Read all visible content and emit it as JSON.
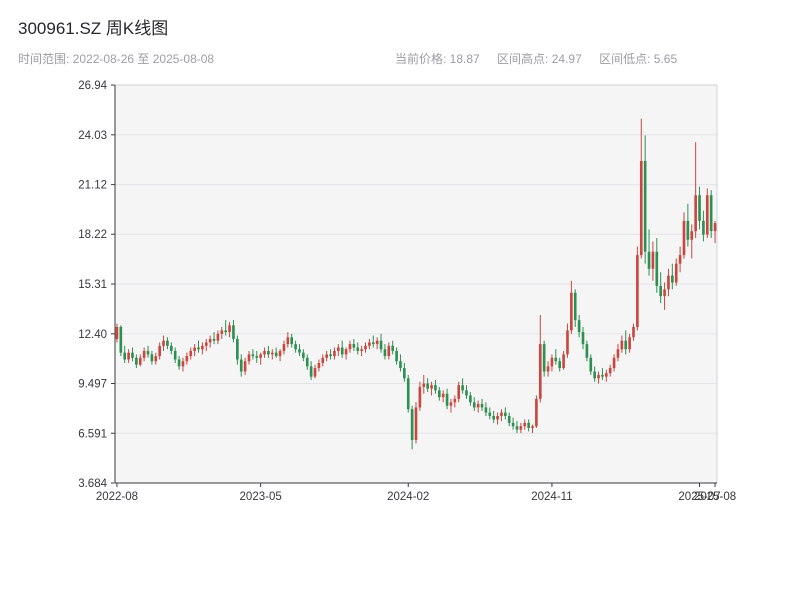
{
  "header": {
    "title": "300961.SZ 周K线图"
  },
  "subheader": {
    "time_range": "时间范围: 2022-08-26 至 2025-08-08",
    "current_price": "当前价格: 18.87",
    "range_high": "区间高点: 24.97",
    "range_low": "区间低点: 5.65"
  },
  "chart_data": {
    "type": "candlestick",
    "title": "300961.SZ 周K线图",
    "xlabel": "",
    "ylabel": "",
    "ylim": [
      3.684,
      26.94
    ],
    "grid": true,
    "legend": "none",
    "colors": {
      "up": "#c9473f",
      "down": "#2e8f52",
      "plot_bg": "#f5f5f6",
      "grid": "#e4e4e8",
      "frame": "#d2d2d7",
      "axis": "#3a3a3e",
      "text": "#37383c"
    },
    "y_ticks": [
      {
        "label": "26.94",
        "value": 26.94
      },
      {
        "label": "24.03",
        "value": 24.03
      },
      {
        "label": "21.12",
        "value": 21.12
      },
      {
        "label": "18.22",
        "value": 18.22
      },
      {
        "label": "15.31",
        "value": 15.31
      },
      {
        "label": "12.40",
        "value": 12.4
      },
      {
        "label": "9.497",
        "value": 9.497
      },
      {
        "label": "6.591",
        "value": 6.591
      },
      {
        "label": "3.684",
        "value": 3.684
      }
    ],
    "x_ticks": [
      {
        "label": "2022-08",
        "week": 0
      },
      {
        "label": "2023-05",
        "week": 37
      },
      {
        "label": "2024-02",
        "week": 75
      },
      {
        "label": "2024-11",
        "week": 112
      },
      {
        "label": "2025-07",
        "week": 150
      },
      {
        "label": "2025-08",
        "week": 154
      }
    ],
    "ohlc_order": [
      "open",
      "high",
      "low",
      "close"
    ],
    "candles": [
      [
        12.1,
        13.0,
        11.9,
        12.8
      ],
      [
        12.8,
        12.9,
        11.1,
        11.3
      ],
      [
        11.3,
        11.7,
        10.7,
        10.9
      ],
      [
        10.9,
        11.5,
        10.7,
        11.3
      ],
      [
        11.3,
        11.6,
        10.8,
        11.0
      ],
      [
        11.0,
        11.2,
        10.4,
        10.6
      ],
      [
        10.6,
        11.2,
        10.5,
        11.0
      ],
      [
        11.0,
        11.6,
        10.8,
        11.4
      ],
      [
        11.4,
        11.7,
        11.0,
        11.2
      ],
      [
        11.2,
        11.4,
        10.6,
        10.8
      ],
      [
        10.8,
        11.3,
        10.6,
        11.1
      ],
      [
        11.1,
        11.9,
        10.9,
        11.7
      ],
      [
        11.7,
        12.3,
        11.4,
        12.0
      ],
      [
        12.0,
        12.2,
        11.5,
        11.7
      ],
      [
        11.7,
        11.9,
        11.2,
        11.4
      ],
      [
        11.4,
        11.6,
        10.7,
        10.9
      ],
      [
        10.9,
        11.1,
        10.3,
        10.5
      ],
      [
        10.5,
        11.0,
        10.2,
        10.8
      ],
      [
        10.8,
        11.3,
        10.6,
        11.1
      ],
      [
        11.1,
        11.6,
        10.9,
        11.4
      ],
      [
        11.4,
        11.8,
        11.1,
        11.6
      ],
      [
        11.6,
        12.0,
        11.3,
        11.5
      ],
      [
        11.5,
        11.9,
        11.2,
        11.7
      ],
      [
        11.7,
        12.1,
        11.4,
        11.9
      ],
      [
        11.9,
        12.3,
        11.6,
        12.1
      ],
      [
        12.1,
        12.5,
        11.8,
        12.0
      ],
      [
        12.0,
        12.6,
        11.8,
        12.4
      ],
      [
        12.4,
        12.8,
        12.1,
        12.6
      ],
      [
        12.6,
        13.2,
        12.3,
        12.5
      ],
      [
        12.5,
        13.1,
        12.2,
        12.9
      ],
      [
        12.9,
        13.2,
        11.9,
        12.1
      ],
      [
        12.1,
        12.3,
        10.6,
        10.9
      ],
      [
        10.9,
        11.2,
        9.9,
        10.2
      ],
      [
        10.2,
        11.0,
        10.0,
        10.8
      ],
      [
        10.8,
        11.4,
        10.6,
        11.2
      ],
      [
        11.2,
        11.5,
        10.9,
        11.1
      ],
      [
        11.1,
        11.4,
        10.7,
        11.0
      ],
      [
        11.0,
        11.3,
        10.6,
        11.2
      ],
      [
        11.2,
        11.6,
        11.0,
        11.4
      ],
      [
        11.4,
        11.7,
        11.0,
        11.2
      ],
      [
        11.2,
        11.5,
        10.9,
        11.3
      ],
      [
        11.3,
        11.6,
        11.0,
        11.1
      ],
      [
        11.1,
        11.5,
        10.8,
        11.4
      ],
      [
        11.4,
        12.0,
        11.2,
        11.8
      ],
      [
        11.8,
        12.5,
        11.6,
        12.2
      ],
      [
        12.2,
        12.4,
        11.6,
        11.8
      ],
      [
        11.8,
        12.0,
        11.3,
        11.5
      ],
      [
        11.5,
        11.8,
        11.1,
        11.3
      ],
      [
        11.3,
        11.5,
        10.8,
        11.0
      ],
      [
        11.0,
        11.2,
        10.3,
        10.5
      ],
      [
        10.5,
        10.8,
        9.7,
        9.9
      ],
      [
        9.9,
        10.6,
        9.8,
        10.4
      ],
      [
        10.4,
        10.9,
        10.2,
        10.7
      ],
      [
        10.7,
        11.2,
        10.5,
        11.0
      ],
      [
        11.0,
        11.4,
        10.8,
        11.2
      ],
      [
        11.2,
        11.5,
        10.9,
        11.1
      ],
      [
        11.1,
        11.6,
        10.9,
        11.4
      ],
      [
        11.4,
        11.8,
        11.1,
        11.6
      ],
      [
        11.6,
        12.0,
        11.0,
        11.2
      ],
      [
        11.2,
        11.6,
        10.9,
        11.5
      ],
      [
        11.5,
        12.0,
        11.3,
        11.8
      ],
      [
        11.8,
        12.1,
        11.4,
        11.6
      ],
      [
        11.6,
        11.9,
        11.2,
        11.4
      ],
      [
        11.4,
        11.7,
        11.1,
        11.5
      ],
      [
        11.5,
        11.9,
        11.3,
        11.7
      ],
      [
        11.7,
        12.1,
        11.5,
        11.9
      ],
      [
        11.9,
        12.3,
        11.6,
        11.8
      ],
      [
        11.8,
        12.2,
        11.5,
        12.0
      ],
      [
        12.0,
        12.4,
        11.3,
        11.5
      ],
      [
        11.5,
        11.8,
        10.9,
        11.1
      ],
      [
        11.1,
        11.9,
        10.9,
        11.7
      ],
      [
        11.7,
        12.0,
        11.2,
        11.4
      ],
      [
        11.4,
        11.6,
        10.6,
        10.8
      ],
      [
        10.8,
        11.2,
        10.2,
        10.4
      ],
      [
        10.4,
        10.7,
        9.6,
        9.8
      ],
      [
        9.8,
        10.0,
        7.8,
        8.0
      ],
      [
        8.0,
        8.2,
        5.65,
        6.2
      ],
      [
        6.2,
        8.4,
        6.0,
        8.1
      ],
      [
        8.1,
        9.6,
        7.9,
        9.3
      ],
      [
        9.3,
        10.0,
        8.9,
        9.5
      ],
      [
        9.5,
        9.8,
        9.0,
        9.2
      ],
      [
        9.2,
        9.6,
        8.8,
        9.4
      ],
      [
        9.4,
        9.7,
        8.9,
        9.1
      ],
      [
        9.1,
        9.3,
        8.5,
        8.7
      ],
      [
        8.7,
        9.1,
        8.4,
        8.9
      ],
      [
        8.9,
        9.2,
        8.0,
        8.2
      ],
      [
        8.2,
        8.6,
        7.8,
        8.4
      ],
      [
        8.4,
        8.8,
        8.1,
        8.6
      ],
      [
        8.6,
        9.6,
        8.4,
        9.4
      ],
      [
        9.4,
        9.8,
        8.9,
        9.1
      ],
      [
        9.1,
        9.4,
        8.6,
        8.8
      ],
      [
        8.8,
        9.0,
        8.2,
        8.4
      ],
      [
        8.4,
        8.7,
        7.9,
        8.1
      ],
      [
        8.1,
        8.5,
        7.8,
        8.3
      ],
      [
        8.3,
        8.6,
        7.9,
        8.1
      ],
      [
        8.1,
        8.4,
        7.6,
        7.8
      ],
      [
        7.8,
        8.1,
        7.4,
        7.6
      ],
      [
        7.6,
        7.9,
        7.2,
        7.4
      ],
      [
        7.4,
        7.8,
        7.1,
        7.6
      ],
      [
        7.6,
        8.0,
        7.3,
        7.8
      ],
      [
        7.8,
        8.1,
        7.4,
        7.6
      ],
      [
        7.6,
        7.8,
        7.0,
        7.2
      ],
      [
        7.2,
        7.5,
        6.8,
        7.0
      ],
      [
        7.0,
        7.3,
        6.6,
        6.8
      ],
      [
        6.8,
        7.2,
        6.6,
        7.0
      ],
      [
        7.0,
        7.4,
        6.8,
        7.2
      ],
      [
        7.2,
        7.4,
        6.7,
        6.9
      ],
      [
        6.9,
        7.1,
        6.6,
        7.0
      ],
      [
        7.0,
        8.8,
        6.9,
        8.6
      ],
      [
        8.6,
        13.5,
        8.4,
        11.8
      ],
      [
        11.8,
        12.0,
        9.9,
        10.2
      ],
      [
        10.2,
        10.8,
        9.9,
        10.5
      ],
      [
        10.5,
        11.2,
        10.2,
        11.0
      ],
      [
        11.0,
        11.5,
        10.6,
        10.8
      ],
      [
        10.8,
        11.0,
        10.2,
        10.4
      ],
      [
        10.4,
        11.4,
        10.3,
        11.2
      ],
      [
        11.2,
        13.0,
        11.0,
        12.6
      ],
      [
        12.6,
        15.5,
        12.4,
        14.8
      ],
      [
        14.8,
        15.0,
        12.8,
        13.2
      ],
      [
        13.2,
        13.5,
        12.2,
        12.5
      ],
      [
        12.5,
        12.8,
        11.5,
        11.8
      ],
      [
        11.8,
        12.0,
        10.8,
        11.0
      ],
      [
        11.0,
        11.2,
        10.0,
        10.2
      ],
      [
        10.2,
        10.5,
        9.6,
        9.8
      ],
      [
        9.8,
        10.2,
        9.5,
        10.0
      ],
      [
        10.0,
        10.4,
        9.7,
        9.9
      ],
      [
        9.9,
        10.3,
        9.6,
        10.1
      ],
      [
        10.1,
        10.6,
        9.9,
        10.4
      ],
      [
        10.4,
        11.2,
        10.2,
        11.0
      ],
      [
        11.0,
        11.8,
        10.8,
        11.5
      ],
      [
        11.5,
        12.3,
        11.3,
        12.0
      ],
      [
        12.0,
        12.6,
        11.2,
        11.5
      ],
      [
        11.5,
        12.4,
        11.3,
        12.2
      ],
      [
        12.2,
        13.0,
        12.0,
        12.8
      ],
      [
        12.8,
        17.5,
        12.6,
        17.0
      ],
      [
        17.0,
        24.97,
        16.8,
        22.5
      ],
      [
        22.5,
        24.0,
        16.5,
        17.2
      ],
      [
        17.2,
        18.5,
        15.8,
        16.2
      ],
      [
        16.2,
        17.8,
        15.5,
        17.2
      ],
      [
        17.2,
        18.0,
        14.8,
        15.2
      ],
      [
        15.2,
        16.0,
        14.2,
        14.6
      ],
      [
        14.6,
        15.4,
        13.8,
        15.0
      ],
      [
        15.0,
        16.2,
        14.6,
        15.8
      ],
      [
        15.8,
        16.5,
        15.0,
        15.4
      ],
      [
        15.4,
        16.8,
        15.2,
        16.5
      ],
      [
        16.5,
        17.5,
        16.0,
        17.0
      ],
      [
        17.0,
        19.5,
        16.8,
        19.0
      ],
      [
        19.0,
        20.0,
        17.5,
        17.9
      ],
      [
        17.9,
        18.8,
        16.8,
        18.4
      ],
      [
        18.4,
        23.6,
        18.0,
        20.5
      ],
      [
        20.5,
        21.0,
        18.5,
        19.0
      ],
      [
        19.0,
        19.6,
        17.8,
        18.2
      ],
      [
        18.2,
        20.9,
        18.0,
        20.5
      ],
      [
        20.5,
        20.8,
        18.0,
        18.4
      ],
      [
        18.4,
        19.0,
        17.7,
        18.87
      ]
    ]
  }
}
